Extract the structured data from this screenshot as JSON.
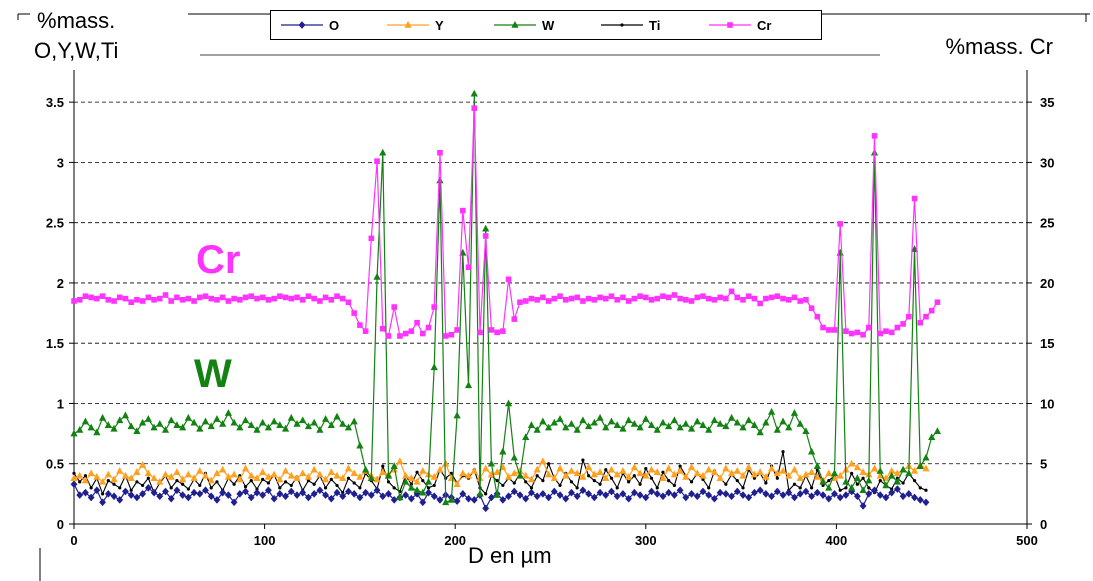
{
  "chart_data": {
    "type": "line",
    "title": "",
    "xlabel": "D en µm",
    "ylabel_left": "%mass.\nO,Y,W,Ti",
    "ylabel_right": "%mass. Cr",
    "xlim": [
      0,
      500
    ],
    "ylim_left": [
      0,
      3.75
    ],
    "ylim_right": [
      0,
      37.5
    ],
    "x_ticks": [
      "0",
      "100",
      "200",
      "300",
      "400",
      "500"
    ],
    "y_ticks_left": [
      "0",
      "0.5",
      "1",
      "1.5",
      "2",
      "2.5",
      "3",
      "3.5"
    ],
    "y_ticks_right": [
      "0",
      "5",
      "10",
      "15",
      "20",
      "25",
      "30",
      "35"
    ],
    "grid": "horizontal dashed",
    "legend_position": "top",
    "annotations": [
      {
        "text": "Cr",
        "color": "#ff33ff"
      },
      {
        "text": "W",
        "color": "#138213"
      }
    ],
    "x_step": 3,
    "series": [
      {
        "name": "O",
        "axis": "left",
        "color": "#1f1f8f",
        "marker": "diamond",
        "values": [
          0.33,
          0.24,
          0.26,
          0.22,
          0.28,
          0.18,
          0.25,
          0.23,
          0.2,
          0.27,
          0.24,
          0.22,
          0.25,
          0.3,
          0.26,
          0.23,
          0.27,
          0.21,
          0.28,
          0.24,
          0.22,
          0.26,
          0.25,
          0.28,
          0.23,
          0.2,
          0.26,
          0.24,
          0.18,
          0.25,
          0.27,
          0.22,
          0.26,
          0.24,
          0.28,
          0.21,
          0.25,
          0.23,
          0.27,
          0.24,
          0.26,
          0.22,
          0.25,
          0.28,
          0.24,
          0.21,
          0.26,
          0.23,
          0.27,
          0.25,
          0.22,
          0.26,
          0.24,
          0.28,
          0.23,
          0.25,
          0.2,
          0.22,
          0.24,
          0.21,
          0.25,
          0.18,
          0.26,
          0.23,
          0.2,
          0.24,
          0.22,
          0.19,
          0.25,
          0.21,
          0.2,
          0.24,
          0.13,
          0.22,
          0.25,
          0.2,
          0.23,
          0.27,
          0.24,
          0.21,
          0.26,
          0.23,
          0.25,
          0.22,
          0.27,
          0.24,
          0.21,
          0.26,
          0.23,
          0.28,
          0.25,
          0.22,
          0.26,
          0.24,
          0.27,
          0.23,
          0.25,
          0.21,
          0.26,
          0.24,
          0.22,
          0.27,
          0.25,
          0.23,
          0.26,
          0.24,
          0.28,
          0.22,
          0.25,
          0.23,
          0.27,
          0.24,
          0.21,
          0.26,
          0.25,
          0.23,
          0.27,
          0.24,
          0.22,
          0.26,
          0.28,
          0.25,
          0.23,
          0.27,
          0.24,
          0.26,
          0.22,
          0.25,
          0.27,
          0.23,
          0.26,
          0.24,
          0.21,
          0.25,
          0.22,
          0.24,
          0.27,
          0.23,
          0.15,
          0.25,
          0.28,
          0.24,
          0.22,
          0.26,
          0.29,
          0.23,
          0.25,
          0.22,
          0.2,
          0.18
        ]
      },
      {
        "name": "Y",
        "axis": "left",
        "color": "#ffa020",
        "marker": "triangle",
        "values": [
          0.38,
          0.4,
          0.36,
          0.42,
          0.39,
          0.35,
          0.41,
          0.37,
          0.44,
          0.4,
          0.38,
          0.43,
          0.49,
          0.42,
          0.38,
          0.35,
          0.41,
          0.39,
          0.43,
          0.37,
          0.41,
          0.38,
          0.44,
          0.4,
          0.36,
          0.42,
          0.45,
          0.39,
          0.41,
          0.37,
          0.46,
          0.4,
          0.38,
          0.43,
          0.39,
          0.41,
          0.37,
          0.44,
          0.4,
          0.38,
          0.42,
          0.39,
          0.45,
          0.41,
          0.37,
          0.43,
          0.4,
          0.38,
          0.46,
          0.42,
          0.39,
          0.44,
          0.4,
          0.37,
          0.43,
          0.41,
          0.45,
          0.52,
          0.4,
          0.38,
          0.35,
          0.44,
          0.41,
          0.39,
          0.45,
          0.5,
          0.38,
          0.33,
          0.42,
          0.4,
          0.44,
          0.38,
          0.46,
          0.41,
          0.43,
          0.47,
          0.39,
          0.42,
          0.44,
          0.4,
          0.37,
          0.45,
          0.52,
          0.41,
          0.38,
          0.46,
          0.4,
          0.44,
          0.42,
          0.39,
          0.47,
          0.41,
          0.43,
          0.38,
          0.45,
          0.41,
          0.44,
          0.39,
          0.47,
          0.42,
          0.4,
          0.45,
          0.43,
          0.38,
          0.46,
          0.41,
          0.44,
          0.39,
          0.47,
          0.42,
          0.4,
          0.45,
          0.43,
          0.38,
          0.46,
          0.42,
          0.44,
          0.4,
          0.47,
          0.41,
          0.43,
          0.39,
          0.46,
          0.42,
          0.44,
          0.4,
          0.45,
          0.38,
          0.41,
          0.43,
          0.39,
          0.36,
          0.42,
          0.38,
          0.4,
          0.45,
          0.5,
          0.47,
          0.43,
          0.41,
          0.46,
          0.4,
          0.38,
          0.44,
          0.42,
          0.45,
          0.48,
          0.44,
          0.49,
          0.46
        ]
      },
      {
        "name": "W",
        "axis": "left",
        "color": "#138213",
        "marker": "triangle",
        "values": [
          0.75,
          0.78,
          0.85,
          0.8,
          0.76,
          0.88,
          0.82,
          0.79,
          0.86,
          0.9,
          0.81,
          0.77,
          0.84,
          0.87,
          0.8,
          0.83,
          0.78,
          0.86,
          0.82,
          0.8,
          0.88,
          0.84,
          0.79,
          0.85,
          0.81,
          0.87,
          0.83,
          0.92,
          0.84,
          0.8,
          0.86,
          0.82,
          0.78,
          0.84,
          0.8,
          0.85,
          0.82,
          0.79,
          0.88,
          0.83,
          0.86,
          0.81,
          0.84,
          0.78,
          0.87,
          0.82,
          0.89,
          0.83,
          0.8,
          0.85,
          0.65,
          0.45,
          0.38,
          2.05,
          3.08,
          0.4,
          0.48,
          0.22,
          0.35,
          0.3,
          0.28,
          0.26,
          0.35,
          1.3,
          2.85,
          0.18,
          0.2,
          0.9,
          2.25,
          1.15,
          3.57,
          0.25,
          2.45,
          0.5,
          0.24,
          0.6,
          1.0,
          0.55,
          0.4,
          0.72,
          0.82,
          0.78,
          0.85,
          0.8,
          0.84,
          0.87,
          0.8,
          0.83,
          0.78,
          0.86,
          0.81,
          0.84,
          0.88,
          0.8,
          0.85,
          0.82,
          0.79,
          0.86,
          0.83,
          0.8,
          0.87,
          0.82,
          0.78,
          0.84,
          0.81,
          0.86,
          0.8,
          0.83,
          0.79,
          0.85,
          0.82,
          0.78,
          0.86,
          0.83,
          0.81,
          0.88,
          0.84,
          0.8,
          0.86,
          0.82,
          0.76,
          0.84,
          0.93,
          0.78,
          0.85,
          0.8,
          0.92,
          0.83,
          0.77,
          0.6,
          0.48,
          0.35,
          0.3,
          0.42,
          2.25,
          0.35,
          0.3,
          0.38,
          0.28,
          0.36,
          3.08,
          0.44,
          0.32,
          0.4,
          0.35,
          0.45,
          0.42,
          2.28,
          0.48,
          0.55,
          0.72,
          0.77
        ]
      },
      {
        "name": "Ti",
        "axis": "left",
        "color": "#000000",
        "marker": "dot",
        "values": [
          0.42,
          0.35,
          0.4,
          0.3,
          0.38,
          0.25,
          0.36,
          0.33,
          0.3,
          0.4,
          0.28,
          0.35,
          0.32,
          0.38,
          0.26,
          0.34,
          0.4,
          0.3,
          0.36,
          0.33,
          0.29,
          0.37,
          0.32,
          0.42,
          0.3,
          0.35,
          0.28,
          0.38,
          0.33,
          0.4,
          0.31,
          0.36,
          0.29,
          0.37,
          0.34,
          0.41,
          0.3,
          0.35,
          0.32,
          0.39,
          0.28,
          0.36,
          0.33,
          0.4,
          0.3,
          0.37,
          0.32,
          0.26,
          0.38,
          0.34,
          0.3,
          0.42,
          0.36,
          0.29,
          0.48,
          0.35,
          0.3,
          0.27,
          0.4,
          0.33,
          0.43,
          0.36,
          0.3,
          0.32,
          0.45,
          0.38,
          0.42,
          0.34,
          0.4,
          0.38,
          0.45,
          0.3,
          0.25,
          0.4,
          0.36,
          0.32,
          0.38,
          0.34,
          0.42,
          0.35,
          0.3,
          0.4,
          0.36,
          0.5,
          0.38,
          0.32,
          0.42,
          0.35,
          0.3,
          0.53,
          0.4,
          0.36,
          0.33,
          0.45,
          0.38,
          0.3,
          0.42,
          0.35,
          0.4,
          0.33,
          0.46,
          0.38,
          0.3,
          0.43,
          0.36,
          0.32,
          0.48,
          0.4,
          0.35,
          0.42,
          0.37,
          0.3,
          0.44,
          0.38,
          0.33,
          0.41,
          0.36,
          0.3,
          0.45,
          0.38,
          0.42,
          0.34,
          0.48,
          0.38,
          0.6,
          0.28,
          0.33,
          0.3,
          0.4,
          0.3,
          0.45,
          0.32,
          0.36,
          0.4,
          0.28,
          0.3,
          0.42,
          0.33,
          0.38,
          0.3,
          0.26,
          0.36,
          0.32,
          0.29,
          0.38,
          0.34,
          0.42,
          0.36,
          0.3,
          0.28
        ]
      },
      {
        "name": "Cr",
        "axis": "right",
        "color": "#ff33ff",
        "marker": "square",
        "values": [
          18.5,
          18.6,
          18.9,
          18.8,
          18.7,
          18.9,
          18.6,
          18.5,
          18.8,
          18.7,
          18.4,
          18.6,
          18.5,
          18.8,
          18.6,
          18.7,
          19.0,
          18.5,
          18.8,
          18.6,
          18.7,
          18.5,
          18.8,
          18.9,
          18.7,
          18.6,
          18.8,
          18.5,
          18.7,
          18.6,
          18.8,
          18.9,
          18.7,
          18.8,
          18.6,
          18.7,
          18.9,
          18.8,
          18.7,
          18.8,
          18.6,
          18.9,
          18.7,
          18.5,
          18.8,
          18.6,
          18.9,
          18.7,
          18.4,
          17.5,
          16.5,
          16.0,
          23.7,
          30.1,
          16.2,
          15.6,
          18.0,
          15.6,
          15.8,
          16.0,
          16.7,
          15.8,
          16.3,
          18.0,
          30.8,
          15.6,
          15.7,
          16.1,
          26.0,
          21.3,
          34.5,
          15.9,
          23.9,
          16.1,
          15.9,
          16.0,
          20.3,
          17.0,
          18.4,
          18.5,
          18.7,
          18.6,
          18.8,
          18.5,
          18.7,
          18.9,
          18.6,
          18.7,
          18.8,
          18.5,
          18.7,
          18.6,
          18.8,
          18.7,
          18.9,
          18.6,
          18.8,
          18.5,
          18.7,
          18.9,
          18.8,
          18.6,
          18.7,
          18.9,
          18.8,
          19.0,
          18.7,
          18.6,
          18.5,
          18.8,
          18.9,
          18.7,
          18.6,
          18.8,
          18.7,
          19.3,
          18.8,
          18.6,
          18.9,
          18.7,
          18.3,
          18.7,
          18.8,
          18.9,
          18.7,
          18.6,
          18.8,
          18.5,
          18.6,
          17.9,
          17.2,
          16.3,
          16.1,
          16.1,
          24.9,
          16.0,
          15.8,
          15.9,
          15.7,
          16.3,
          32.2,
          15.8,
          16.0,
          15.9,
          16.3,
          16.6,
          17.2,
          27.0,
          16.7,
          17.2,
          17.7,
          18.4
        ]
      }
    ]
  }
}
